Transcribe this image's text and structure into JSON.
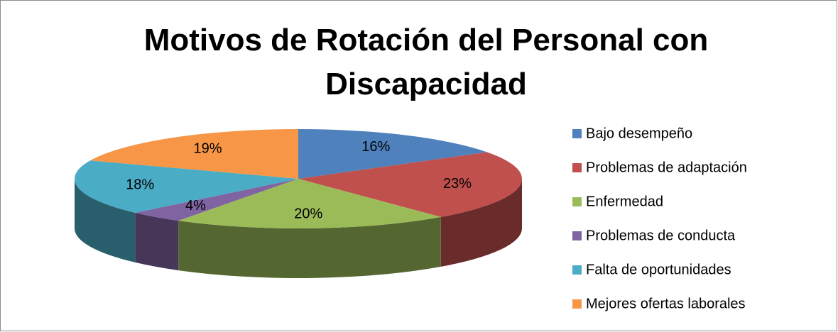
{
  "chart_data": {
    "type": "pie3d",
    "title": "Motivos de Rotación del Personal con Discapacidad",
    "categories": [
      "Bajo desempeño",
      "Problemas de adaptación",
      "Enfermedad",
      "Problemas de conducta",
      "Falta de oportunidades",
      "Mejores ofertas laborales"
    ],
    "values": [
      16,
      23,
      20,
      4,
      18,
      19
    ],
    "value_labels": [
      "16%",
      "23%",
      "20%",
      "4%",
      "18%",
      "19%"
    ],
    "colors": [
      "#4f81bd",
      "#c0504d",
      "#9bbb59",
      "#8064a2",
      "#4bacc6",
      "#f79646"
    ],
    "legend": "right"
  }
}
